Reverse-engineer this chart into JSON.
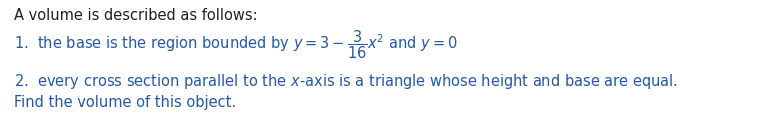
{
  "bg_color": "#ffffff",
  "text_color_black": "#231f20",
  "text_color_blue": "#2458a8",
  "line0": "A volume is described as follows:",
  "line1": "1.  the base is the region bounded by $y = 3 - \\dfrac{3}{16}x^2$ and $y = 0$",
  "line2": "2.  every cross section parallel to the $x$-axis is a triangle whose height and base are equal.",
  "line3": "Find the volume of this object.",
  "font_size": 10.5,
  "fig_width": 7.77,
  "fig_height": 1.23,
  "dpi": 100
}
